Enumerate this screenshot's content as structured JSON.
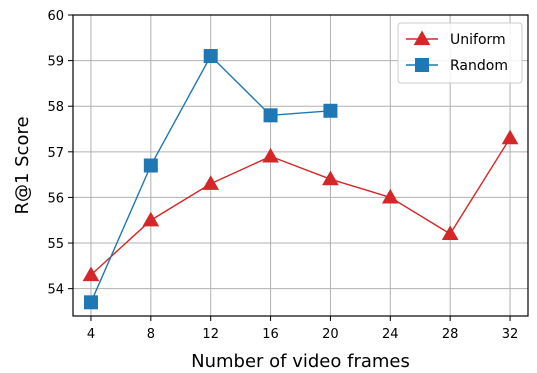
{
  "chart_data": {
    "type": "line",
    "title": "",
    "xlabel": "Number of video frames",
    "ylabel": "R@1 Score",
    "x_ticks": [
      4,
      8,
      12,
      16,
      20,
      24,
      28,
      32
    ],
    "y_ticks": [
      54,
      55,
      56,
      57,
      58,
      59,
      60
    ],
    "xlim": [
      2.8,
      33.2
    ],
    "ylim": [
      53.4,
      60
    ],
    "grid": true,
    "legend_position": "top-right",
    "series": [
      {
        "name": "Uniform",
        "color": "#d62728",
        "marker": "triangle",
        "x": [
          4,
          8,
          12,
          16,
          20,
          24,
          28,
          32
        ],
        "y": [
          54.3,
          55.5,
          56.3,
          56.9,
          56.4,
          56.0,
          55.2,
          57.3
        ]
      },
      {
        "name": "Random",
        "color": "#1f77b4",
        "marker": "square",
        "x": [
          4,
          8,
          12,
          16,
          20
        ],
        "y": [
          53.7,
          56.7,
          59.1,
          57.8,
          57.9
        ]
      }
    ]
  }
}
